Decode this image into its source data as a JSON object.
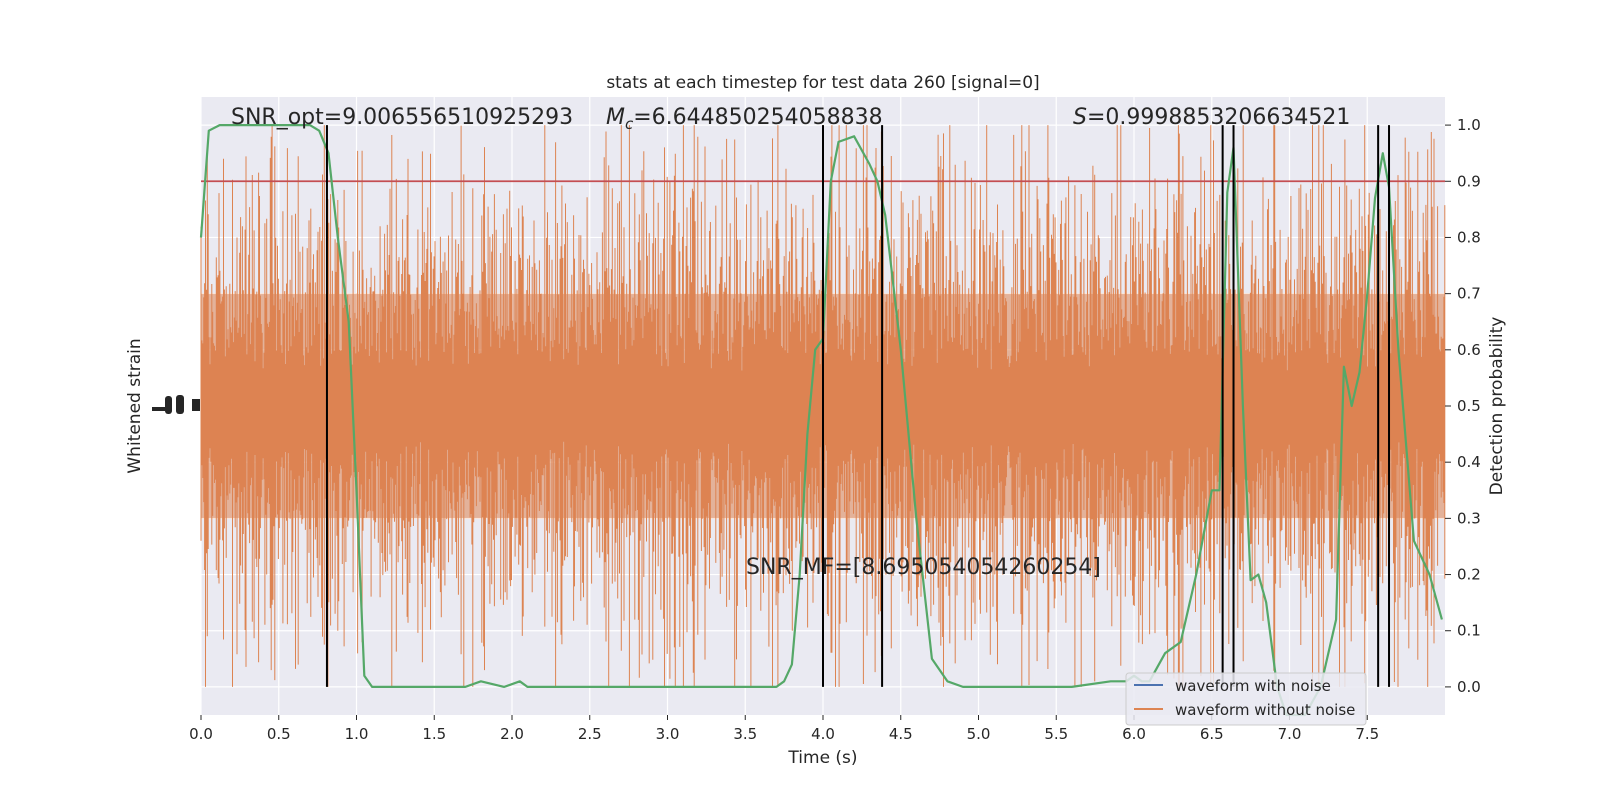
{
  "chart_data": {
    "type": "line",
    "title": "stats at each timestep for test data 260 [signal=0]",
    "xlabel": "Time (s)",
    "ylabel_left": "Whitened strain",
    "ylabel_right": "Detection probability",
    "xlim": [
      0.0,
      8.0
    ],
    "xticks": [
      "0.0",
      "0.5",
      "1.0",
      "1.5",
      "2.0",
      "2.5",
      "3.0",
      "3.5",
      "4.0",
      "4.5",
      "5.0",
      "5.5",
      "6.0",
      "6.5",
      "7.0",
      "7.5"
    ],
    "y_right_lim": [
      -0.05,
      1.05
    ],
    "y_right_ticks": [
      "0.0",
      "0.1",
      "0.2",
      "0.3",
      "0.4",
      "0.5",
      "0.6",
      "0.7",
      "0.8",
      "0.9",
      "1.0"
    ],
    "grid": true,
    "legend": {
      "position": "bottom-right",
      "entries": [
        {
          "label": "waveform with noise",
          "color": "#4c72b0"
        },
        {
          "label": "waveform without noise",
          "color": "#dd8452"
        }
      ]
    },
    "annotations": {
      "snr_opt": "SNR_opt=9.006556510925293",
      "mc_symbol": "M",
      "mc_sub": "c",
      "mc_value": "=6.644850254058838",
      "s_symbol": "S",
      "s_value": "=0.9998853206634521",
      "snr_mf": "SNR_MF=[8.695054054260254]"
    },
    "threshold": {
      "value": 0.9,
      "color": "#c44e52"
    },
    "vertical_lines": [
      0.81,
      4.0,
      4.38,
      6.57,
      6.64,
      7.57,
      7.64
    ],
    "detection_probability": {
      "color": "#55a868",
      "x": [
        0.0,
        0.05,
        0.12,
        0.2,
        0.3,
        0.45,
        0.6,
        0.7,
        0.76,
        0.82,
        0.88,
        0.95,
        1.0,
        1.05,
        1.1,
        1.2,
        1.4,
        1.6,
        1.7,
        1.8,
        1.95,
        2.05,
        2.1,
        2.25,
        2.4,
        2.6,
        3.0,
        3.3,
        3.6,
        3.7,
        3.75,
        3.8,
        3.85,
        3.9,
        3.95,
        4.0,
        4.05,
        4.1,
        4.2,
        4.3,
        4.35,
        4.4,
        4.5,
        4.6,
        4.7,
        4.8,
        4.9,
        5.0,
        5.2,
        5.4,
        5.6,
        5.85,
        5.95,
        6.0,
        6.05,
        6.1,
        6.2,
        6.3,
        6.4,
        6.5,
        6.55,
        6.6,
        6.64,
        6.7,
        6.75,
        6.8,
        6.85,
        6.92,
        6.98,
        7.1,
        7.2,
        7.3,
        7.35,
        7.4,
        7.45,
        7.5,
        7.55,
        7.6,
        7.64,
        7.7,
        7.8,
        7.9,
        7.98
      ],
      "y": [
        0.8,
        0.99,
        1.0,
        1.0,
        1.0,
        1.0,
        1.0,
        1.0,
        0.99,
        0.95,
        0.8,
        0.65,
        0.35,
        0.02,
        0.0,
        0.0,
        0.0,
        0.0,
        0.0,
        0.01,
        0.0,
        0.01,
        0.0,
        0.0,
        0.0,
        0.0,
        0.0,
        0.0,
        0.0,
        0.0,
        0.01,
        0.04,
        0.2,
        0.45,
        0.6,
        0.62,
        0.9,
        0.97,
        0.98,
        0.93,
        0.9,
        0.84,
        0.6,
        0.3,
        0.05,
        0.01,
        0.0,
        0.0,
        0.0,
        0.0,
        0.0,
        0.01,
        0.01,
        0.02,
        0.01,
        0.01,
        0.06,
        0.08,
        0.2,
        0.35,
        0.35,
        0.88,
        0.96,
        0.5,
        0.19,
        0.2,
        0.15,
        0.0,
        -0.05,
        -0.05,
        0.0,
        0.12,
        0.57,
        0.5,
        0.56,
        0.7,
        0.87,
        0.95,
        0.89,
        0.6,
        0.26,
        0.2,
        0.12
      ]
    },
    "strain_without_noise": {
      "color": "#dd8452",
      "center": 0.5,
      "typical_halfwidth": 0.25,
      "extreme_halfwidth": 0.5
    },
    "strain_with_noise": {
      "color": "#4c72b0"
    }
  }
}
